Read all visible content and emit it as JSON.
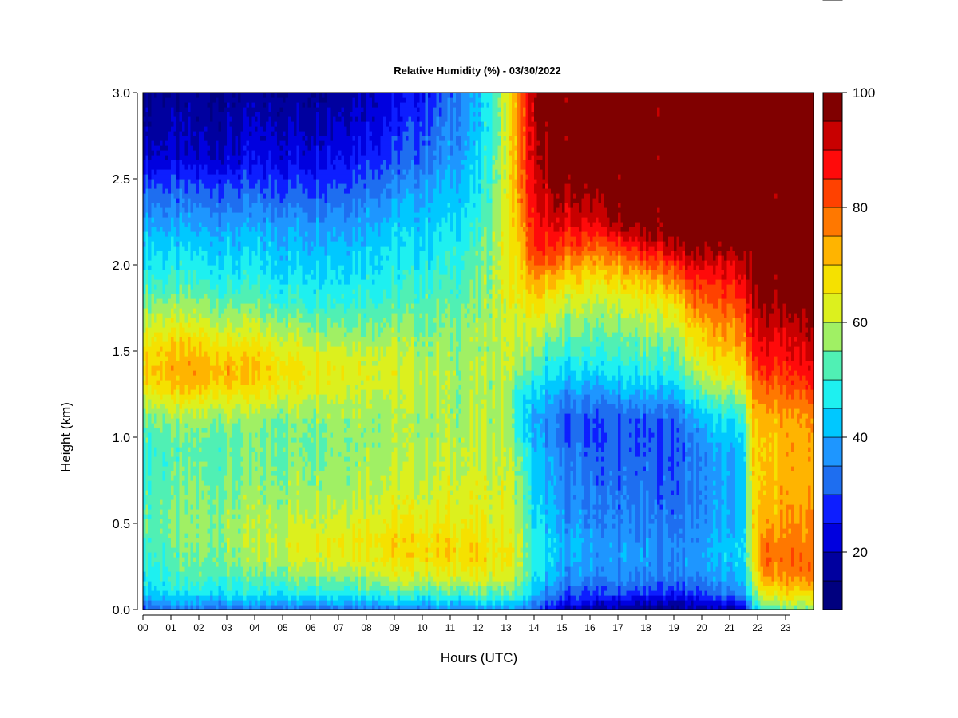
{
  "chart_data": {
    "type": "heatmap",
    "title": "Relative Humidity (%) - 03/30/2022",
    "xlabel": "Hours (UTC)",
    "ylabel": "Height (km)",
    "xlim": [
      0,
      24
    ],
    "ylim": [
      0.0,
      3.0
    ],
    "x_tick_labels": [
      "00",
      "01",
      "02",
      "03",
      "04",
      "05",
      "06",
      "07",
      "08",
      "09",
      "10",
      "11",
      "12",
      "13",
      "14",
      "15",
      "16",
      "17",
      "18",
      "19",
      "20",
      "21",
      "22",
      "23"
    ],
    "y_tick_labels": [
      "0.0",
      "0.5",
      "1.0",
      "1.5",
      "2.0",
      "2.5",
      "3.0"
    ],
    "colorbar": {
      "range": [
        10,
        100
      ],
      "step": 5,
      "tick_labels": [
        "20",
        "40",
        "60",
        "80",
        "100"
      ],
      "colors": [
        "#00007f",
        "#00009f",
        "#0000df",
        "#0d1eff",
        "#1e6ef0",
        "#1e96ff",
        "#00c8ff",
        "#1ef0f0",
        "#50f0b4",
        "#a0f064",
        "#dcf01e",
        "#f5e100",
        "#ffb400",
        "#ff7800",
        "#ff4100",
        "#ff0a0a",
        "#c80000",
        "#800000"
      ]
    },
    "x_hours": [
      0,
      1,
      2,
      3,
      4,
      5,
      6,
      7,
      8,
      9,
      10,
      11,
      12,
      13,
      13.5,
      14,
      14.5,
      15,
      16,
      17,
      18,
      19,
      19.8,
      20.2,
      21,
      21.5,
      21.8,
      22.2,
      23,
      23.8
    ],
    "y_km": [
      0.0,
      0.05,
      0.1,
      0.2,
      0.3,
      0.4,
      0.5,
      0.7,
      0.9,
      1.0,
      1.1,
      1.2,
      1.3,
      1.4,
      1.5,
      1.6,
      1.7,
      1.8,
      1.9,
      2.0,
      2.1,
      2.2,
      2.3,
      2.4,
      2.5,
      2.6,
      2.8,
      3.0
    ],
    "values_by_hour": [
      [
        30,
        38,
        45,
        48,
        50,
        52,
        53,
        52,
        50,
        52,
        55,
        60,
        68,
        70,
        68,
        65,
        60,
        55,
        50,
        48,
        45,
        42,
        38,
        35,
        30,
        22,
        18,
        15
      ],
      [
        32,
        40,
        46,
        50,
        52,
        54,
        55,
        53,
        52,
        53,
        56,
        62,
        70,
        72,
        70,
        65,
        60,
        55,
        50,
        47,
        44,
        40,
        36,
        32,
        28,
        22,
        18,
        15
      ],
      [
        32,
        40,
        46,
        52,
        55,
        56,
        56,
        55,
        53,
        54,
        57,
        63,
        71,
        74,
        70,
        65,
        60,
        55,
        50,
        47,
        44,
        40,
        36,
        32,
        28,
        22,
        18,
        15
      ],
      [
        33,
        40,
        47,
        52,
        56,
        57,
        57,
        55,
        53,
        54,
        57,
        62,
        70,
        72,
        68,
        63,
        58,
        53,
        49,
        46,
        43,
        40,
        36,
        32,
        28,
        22,
        18,
        15
      ],
      [
        32,
        40,
        47,
        53,
        57,
        59,
        58,
        56,
        54,
        54,
        56,
        61,
        68,
        70,
        67,
        62,
        57,
        52,
        48,
        45,
        43,
        40,
        36,
        32,
        28,
        24,
        20,
        16
      ],
      [
        33,
        41,
        48,
        55,
        60,
        62,
        60,
        57,
        55,
        55,
        56,
        60,
        66,
        68,
        65,
        60,
        55,
        50,
        47,
        44,
        42,
        40,
        36,
        32,
        28,
        24,
        20,
        16
      ],
      [
        33,
        42,
        50,
        58,
        63,
        65,
        62,
        58,
        56,
        56,
        57,
        60,
        65,
        66,
        63,
        58,
        54,
        50,
        47,
        45,
        42,
        40,
        36,
        32,
        28,
        24,
        20,
        16
      ],
      [
        33,
        42,
        50,
        58,
        64,
        66,
        63,
        59,
        57,
        57,
        58,
        61,
        64,
        65,
        62,
        58,
        54,
        50,
        47,
        45,
        43,
        40,
        37,
        33,
        30,
        26,
        22,
        18
      ],
      [
        34,
        43,
        51,
        60,
        65,
        67,
        64,
        60,
        58,
        58,
        58,
        60,
        63,
        63,
        61,
        57,
        54,
        50,
        48,
        46,
        44,
        41,
        38,
        35,
        32,
        28,
        24,
        20
      ],
      [
        34,
        44,
        52,
        62,
        67,
        68,
        65,
        61,
        59,
        58,
        58,
        59,
        61,
        62,
        60,
        57,
        54,
        51,
        49,
        47,
        45,
        43,
        40,
        37,
        34,
        30,
        26,
        22
      ],
      [
        35,
        44,
        52,
        62,
        68,
        68,
        65,
        61,
        59,
        58,
        58,
        59,
        60,
        60,
        58,
        56,
        54,
        52,
        50,
        48,
        46,
        44,
        42,
        40,
        37,
        34,
        30,
        26
      ],
      [
        35,
        44,
        53,
        63,
        68,
        68,
        65,
        62,
        60,
        58,
        58,
        58,
        58,
        58,
        57,
        56,
        55,
        53,
        51,
        49,
        48,
        46,
        44,
        42,
        40,
        38,
        35,
        32
      ],
      [
        36,
        45,
        54,
        64,
        68,
        67,
        64,
        62,
        60,
        59,
        58,
        58,
        58,
        58,
        57,
        57,
        56,
        55,
        54,
        53,
        52,
        50,
        48,
        46,
        45,
        43,
        41,
        40
      ],
      [
        38,
        46,
        55,
        63,
        66,
        65,
        63,
        62,
        61,
        60,
        60,
        60,
        60,
        61,
        61,
        62,
        62,
        63,
        63,
        64,
        64,
        64,
        63,
        63,
        62,
        62,
        62,
        62
      ],
      [
        38,
        45,
        52,
        58,
        60,
        60,
        58,
        56,
        54,
        48,
        45,
        46,
        50,
        56,
        58,
        60,
        62,
        64,
        66,
        68,
        70,
        72,
        74,
        76,
        78,
        78,
        78,
        78
      ],
      [
        30,
        36,
        42,
        46,
        48,
        48,
        46,
        44,
        42,
        40,
        40,
        42,
        46,
        52,
        56,
        60,
        64,
        68,
        74,
        80,
        84,
        86,
        88,
        90,
        90,
        92,
        94,
        95
      ],
      [
        24,
        30,
        36,
        42,
        44,
        44,
        42,
        40,
        38,
        36,
        36,
        38,
        42,
        46,
        50,
        56,
        60,
        64,
        70,
        78,
        84,
        88,
        90,
        92,
        94,
        96,
        98,
        99
      ],
      [
        20,
        26,
        32,
        38,
        40,
        40,
        38,
        36,
        34,
        32,
        32,
        35,
        40,
        45,
        50,
        55,
        58,
        62,
        68,
        75,
        82,
        88,
        92,
        96,
        98,
        99,
        99,
        99
      ],
      [
        18,
        24,
        30,
        36,
        38,
        38,
        36,
        34,
        32,
        30,
        30,
        34,
        40,
        46,
        50,
        54,
        57,
        61,
        66,
        72,
        80,
        86,
        92,
        96,
        99,
        99,
        99,
        99
      ],
      [
        16,
        22,
        30,
        36,
        38,
        37,
        35,
        33,
        31,
        30,
        31,
        35,
        42,
        47,
        50,
        54,
        58,
        62,
        68,
        74,
        82,
        92,
        98,
        99,
        99,
        99,
        99,
        99
      ],
      [
        14,
        20,
        28,
        35,
        37,
        36,
        34,
        32,
        31,
        30,
        31,
        36,
        43,
        48,
        52,
        56,
        60,
        65,
        70,
        78,
        88,
        96,
        99,
        99,
        99,
        99,
        99,
        99
      ],
      [
        14,
        20,
        28,
        35,
        37,
        36,
        34,
        32,
        31,
        30,
        32,
        37,
        44,
        50,
        54,
        58,
        63,
        68,
        76,
        84,
        94,
        99,
        99,
        99,
        99,
        99,
        99,
        99
      ],
      [
        16,
        22,
        30,
        36,
        38,
        37,
        36,
        35,
        35,
        36,
        40,
        46,
        54,
        60,
        64,
        68,
        74,
        80,
        86,
        92,
        98,
        99,
        99,
        99,
        99,
        99,
        99,
        99
      ],
      [
        18,
        24,
        32,
        38,
        40,
        40,
        38,
        37,
        38,
        40,
        44,
        50,
        58,
        64,
        68,
        72,
        76,
        80,
        84,
        90,
        96,
        99,
        99,
        99,
        99,
        99,
        99,
        99
      ],
      [
        18,
        26,
        34,
        40,
        42,
        42,
        40,
        39,
        40,
        42,
        46,
        52,
        60,
        66,
        70,
        74,
        78,
        82,
        86,
        90,
        96,
        99,
        99,
        99,
        99,
        99,
        99,
        99
      ],
      [
        20,
        28,
        36,
        42,
        44,
        44,
        42,
        41,
        42,
        44,
        48,
        54,
        62,
        68,
        72,
        76,
        80,
        84,
        88,
        92,
        98,
        99,
        99,
        99,
        99,
        99,
        99,
        99
      ],
      [
        40,
        46,
        52,
        58,
        62,
        64,
        66,
        66,
        68,
        68,
        70,
        72,
        76,
        80,
        84,
        88,
        90,
        93,
        95,
        97,
        99,
        99,
        99,
        99,
        99,
        99,
        99,
        99
      ],
      [
        50,
        58,
        66,
        76,
        80,
        78,
        74,
        72,
        70,
        70,
        72,
        76,
        80,
        86,
        90,
        92,
        95,
        97,
        99,
        99,
        99,
        99,
        99,
        99,
        99,
        99,
        99,
        99
      ],
      [
        52,
        60,
        68,
        76,
        78,
        76,
        74,
        72,
        72,
        72,
        73,
        76,
        80,
        84,
        88,
        90,
        94,
        96,
        98,
        99,
        99,
        99,
        99,
        99,
        99,
        99,
        99,
        99
      ],
      [
        54,
        62,
        70,
        78,
        80,
        78,
        76,
        74,
        74,
        74,
        76,
        80,
        86,
        90,
        92,
        95,
        97,
        99,
        99,
        99,
        99,
        99,
        99,
        99,
        99,
        99,
        99,
        99
      ]
    ]
  }
}
